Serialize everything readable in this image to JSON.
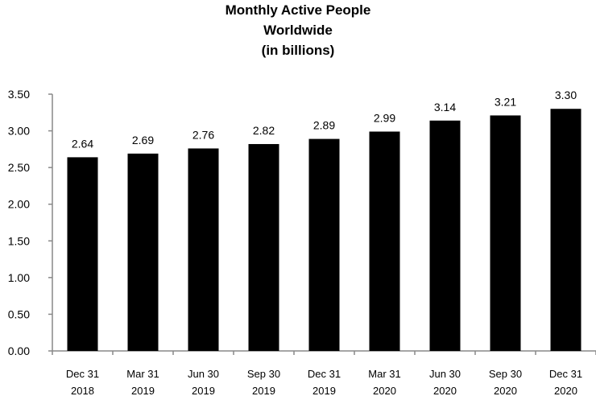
{
  "chart_data": {
    "type": "bar",
    "title_lines": [
      "Monthly Active People",
      "Worldwide",
      "(in billions)"
    ],
    "categories": [
      [
        "Dec 31",
        "2018"
      ],
      [
        "Mar 31",
        "2019"
      ],
      [
        "Jun 30",
        "2019"
      ],
      [
        "Sep 30",
        "2019"
      ],
      [
        "Dec 31",
        "2019"
      ],
      [
        "Mar 31",
        "2020"
      ],
      [
        "Jun 30",
        "2020"
      ],
      [
        "Sep 30",
        "2020"
      ],
      [
        "Dec 31",
        "2020"
      ]
    ],
    "values": [
      2.64,
      2.69,
      2.76,
      2.82,
      2.89,
      2.99,
      3.14,
      3.21,
      3.3
    ],
    "data_labels": [
      "2.64",
      "2.69",
      "2.76",
      "2.82",
      "2.89",
      "2.99",
      "3.14",
      "3.21",
      "3.30"
    ],
    "ylim": [
      0,
      3.5
    ],
    "y_ticks": [
      "0.00",
      "0.50",
      "1.00",
      "1.50",
      "2.00",
      "2.50",
      "3.00",
      "3.50"
    ],
    "grid": false,
    "legend": "none",
    "bar_color": "#000000",
    "xlabel": "",
    "ylabel": ""
  }
}
